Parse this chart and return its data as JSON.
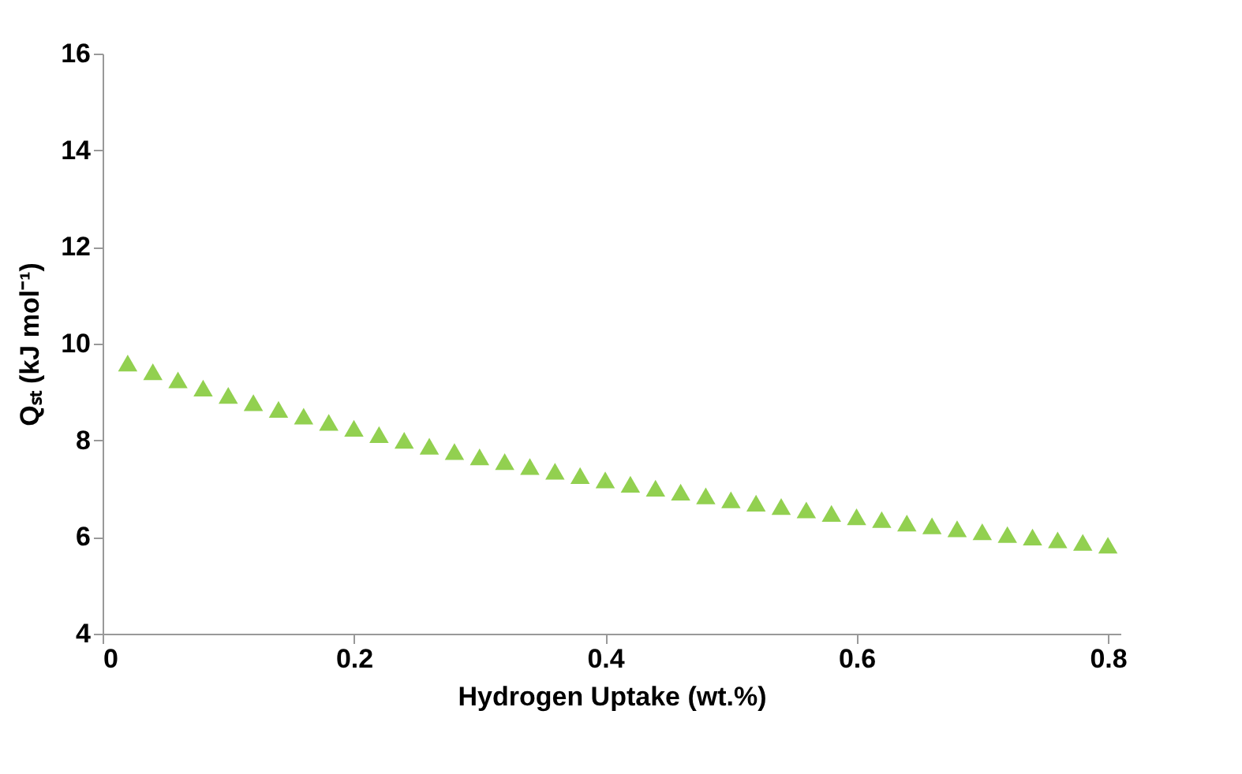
{
  "chart_data": {
    "type": "scatter",
    "xlabel": "Hydrogen Uptake (wt.%)",
    "ylabel": "Qₛₜ (kJ mol⁻¹)",
    "x": [
      0.02,
      0.04,
      0.06,
      0.08,
      0.1,
      0.12,
      0.14,
      0.16,
      0.18,
      0.2,
      0.22,
      0.24,
      0.26,
      0.28,
      0.3,
      0.32,
      0.34,
      0.36,
      0.38,
      0.4,
      0.42,
      0.44,
      0.46,
      0.48,
      0.5,
      0.52,
      0.54,
      0.56,
      0.58,
      0.6,
      0.62,
      0.64,
      0.66,
      0.68,
      0.7,
      0.72,
      0.74,
      0.76,
      0.78,
      0.8
    ],
    "series": [
      {
        "color": "#92d050",
        "values": [
          9.6,
          9.42,
          9.25,
          9.08,
          8.93,
          8.78,
          8.64,
          8.5,
          8.37,
          8.25,
          8.12,
          8.0,
          7.88,
          7.77,
          7.66,
          7.56,
          7.46,
          7.36,
          7.27,
          7.18,
          7.09,
          7.01,
          6.93,
          6.85,
          6.77,
          6.7,
          6.63,
          6.56,
          6.49,
          6.42,
          6.36,
          6.29,
          6.23,
          6.17,
          6.11,
          6.05,
          6.0,
          5.94,
          5.89,
          5.83
        ]
      }
    ],
    "xlim": [
      0,
      0.81
    ],
    "xticks": [
      0,
      0.2,
      0.4,
      0.6,
      0.8
    ],
    "ylim": [
      4,
      16
    ],
    "yticks": [
      4,
      6,
      8,
      10,
      12,
      14,
      16
    ],
    "marker": "triangle",
    "grid": false
  }
}
